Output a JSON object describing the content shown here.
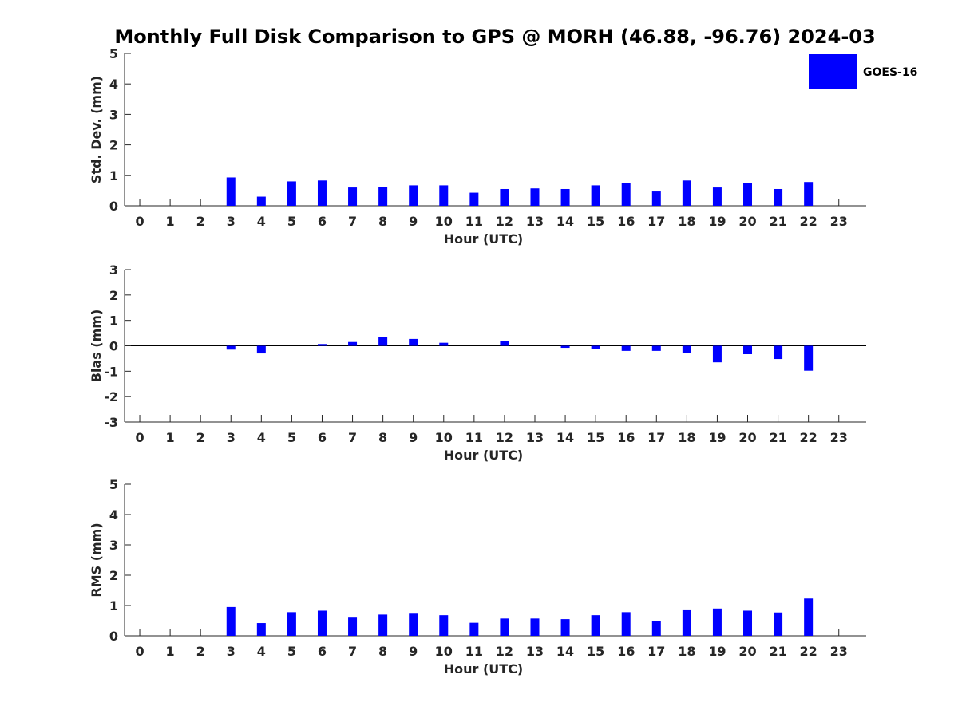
{
  "figure": {
    "title": "Monthly Full Disk Comparison to GPS @ MORH (46.88, -96.76) 2024-03",
    "colors": {
      "bar": "#0000ff",
      "axis": "#262626"
    }
  },
  "chart_data": [
    {
      "type": "bar",
      "title": "",
      "xlabel": "Hour (UTC)",
      "ylabel": "Std. Dev. (mm)",
      "ylim": [
        0,
        5
      ],
      "yticks": [
        0,
        1,
        2,
        3,
        4,
        5
      ],
      "xlim": [
        -0.5,
        23.9
      ],
      "categories": [
        "0",
        "1",
        "2",
        "3",
        "4",
        "5",
        "6",
        "7",
        "8",
        "9",
        "10",
        "11",
        "12",
        "13",
        "14",
        "15",
        "16",
        "17",
        "18",
        "19",
        "20",
        "21",
        "22",
        "23"
      ],
      "series": [
        {
          "name": "GOES-16",
          "color": "#0000ff",
          "values": [
            null,
            null,
            null,
            0.93,
            0.3,
            0.8,
            0.83,
            0.6,
            0.62,
            0.67,
            0.67,
            0.43,
            0.55,
            0.57,
            0.55,
            0.67,
            0.75,
            0.47,
            0.83,
            0.6,
            0.75,
            0.55,
            0.78,
            null
          ]
        }
      ],
      "legend": {
        "position": "top-right",
        "entries": [
          "GOES-16"
        ]
      },
      "grid": false
    },
    {
      "type": "bar",
      "title": "",
      "xlabel": "Hour (UTC)",
      "ylabel": "Bias (mm)",
      "ylim": [
        -3,
        3
      ],
      "yticks": [
        -3,
        -2,
        -1,
        0,
        1,
        2,
        3
      ],
      "xlim": [
        -0.5,
        23.9
      ],
      "categories": [
        "0",
        "1",
        "2",
        "3",
        "4",
        "5",
        "6",
        "7",
        "8",
        "9",
        "10",
        "11",
        "12",
        "13",
        "14",
        "15",
        "16",
        "17",
        "18",
        "19",
        "20",
        "21",
        "22",
        "23"
      ],
      "series": [
        {
          "name": "GOES-16",
          "color": "#0000ff",
          "values": [
            null,
            null,
            null,
            -0.15,
            -0.3,
            0.0,
            0.07,
            0.15,
            0.33,
            0.27,
            0.12,
            0.0,
            0.18,
            0.0,
            -0.08,
            -0.12,
            -0.2,
            -0.2,
            -0.28,
            -0.65,
            -0.33,
            -0.52,
            -0.98,
            null
          ]
        }
      ],
      "zero_line": true,
      "grid": false
    },
    {
      "type": "bar",
      "title": "",
      "xlabel": "Hour (UTC)",
      "ylabel": "RMS (mm)",
      "ylim": [
        0,
        5
      ],
      "yticks": [
        0,
        1,
        2,
        3,
        4,
        5
      ],
      "xlim": [
        -0.5,
        23.9
      ],
      "categories": [
        "0",
        "1",
        "2",
        "3",
        "4",
        "5",
        "6",
        "7",
        "8",
        "9",
        "10",
        "11",
        "12",
        "13",
        "14",
        "15",
        "16",
        "17",
        "18",
        "19",
        "20",
        "21",
        "22",
        "23"
      ],
      "series": [
        {
          "name": "GOES-16",
          "color": "#0000ff",
          "values": [
            null,
            null,
            null,
            0.95,
            0.42,
            0.78,
            0.83,
            0.6,
            0.7,
            0.73,
            0.68,
            0.43,
            0.57,
            0.57,
            0.55,
            0.68,
            0.78,
            0.5,
            0.87,
            0.9,
            0.83,
            0.77,
            1.23,
            null
          ]
        }
      ],
      "grid": false
    }
  ]
}
